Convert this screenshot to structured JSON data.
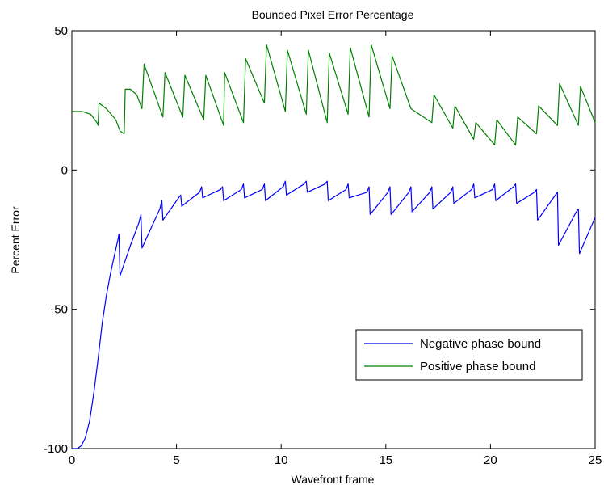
{
  "chart_data": {
    "type": "line",
    "title": "Bounded Pixel Error Percentage",
    "xlabel": "Wavefront frame",
    "ylabel": "Percent Error",
    "xlim": [
      0,
      25
    ],
    "ylim": [
      -100,
      50
    ],
    "xticks": [
      0,
      5,
      10,
      15,
      20,
      25
    ],
    "yticks": [
      -100,
      -50,
      0,
      50
    ],
    "xtick_labels": [
      "0",
      "5",
      "10",
      "15",
      "20",
      "25"
    ],
    "ytick_labels": [
      "-100",
      "-50",
      "0",
      "50"
    ],
    "grid": false,
    "legend_position": "lower-right",
    "series": [
      {
        "name": "Negative phase bound",
        "color": "#0000ff",
        "points": [
          [
            0,
            -100
          ],
          [
            0.25,
            -100
          ],
          [
            0.45,
            -99
          ],
          [
            0.65,
            -96
          ],
          [
            0.85,
            -90
          ],
          [
            1.05,
            -80
          ],
          [
            1.25,
            -68
          ],
          [
            1.45,
            -55
          ],
          [
            1.65,
            -45
          ],
          [
            1.85,
            -37
          ],
          [
            2.05,
            -30
          ],
          [
            2.2,
            -25
          ],
          [
            2.25,
            -23
          ],
          [
            2.3,
            -38
          ],
          [
            2.8,
            -27
          ],
          [
            3.2,
            -19
          ],
          [
            3.3,
            -16
          ],
          [
            3.35,
            -28
          ],
          [
            4.2,
            -14
          ],
          [
            4.3,
            -11
          ],
          [
            4.35,
            -18
          ],
          [
            5.1,
            -10
          ],
          [
            5.2,
            -9
          ],
          [
            5.25,
            -13
          ],
          [
            6.1,
            -8
          ],
          [
            6.2,
            -6
          ],
          [
            6.25,
            -10
          ],
          [
            7.1,
            -7
          ],
          [
            7.2,
            -6
          ],
          [
            7.25,
            -11
          ],
          [
            8.1,
            -7
          ],
          [
            8.2,
            -5
          ],
          [
            8.25,
            -10
          ],
          [
            9.1,
            -7
          ],
          [
            9.2,
            -5
          ],
          [
            9.25,
            -11
          ],
          [
            10.1,
            -6
          ],
          [
            10.2,
            -4
          ],
          [
            10.25,
            -9
          ],
          [
            11.1,
            -5
          ],
          [
            11.2,
            -4
          ],
          [
            11.25,
            -8
          ],
          [
            12.1,
            -5
          ],
          [
            12.2,
            -4
          ],
          [
            12.25,
            -11
          ],
          [
            13.1,
            -7
          ],
          [
            13.2,
            -5
          ],
          [
            13.25,
            -10
          ],
          [
            14.1,
            -8
          ],
          [
            14.2,
            -6
          ],
          [
            14.25,
            -16
          ],
          [
            15.1,
            -8
          ],
          [
            15.2,
            -6
          ],
          [
            15.25,
            -16
          ],
          [
            16.1,
            -8
          ],
          [
            16.2,
            -6
          ],
          [
            16.25,
            -15
          ],
          [
            17.1,
            -8
          ],
          [
            17.2,
            -6
          ],
          [
            17.25,
            -14
          ],
          [
            18.1,
            -8
          ],
          [
            18.2,
            -6
          ],
          [
            18.25,
            -12
          ],
          [
            19.1,
            -7
          ],
          [
            19.2,
            -5
          ],
          [
            19.25,
            -10
          ],
          [
            20.1,
            -7
          ],
          [
            20.2,
            -5
          ],
          [
            20.25,
            -11
          ],
          [
            21.1,
            -6
          ],
          [
            21.2,
            -5
          ],
          [
            21.25,
            -12
          ],
          [
            22.1,
            -8
          ],
          [
            22.2,
            -7
          ],
          [
            22.25,
            -18
          ],
          [
            23.1,
            -9
          ],
          [
            23.2,
            -8
          ],
          [
            23.25,
            -27
          ],
          [
            24.1,
            -15
          ],
          [
            24.2,
            -14
          ],
          [
            24.25,
            -30
          ],
          [
            25,
            -17
          ]
        ]
      },
      {
        "name": "Positive phase bound",
        "color": "#008000",
        "points": [
          [
            0,
            21
          ],
          [
            0.5,
            21
          ],
          [
            0.9,
            20
          ],
          [
            1.2,
            17
          ],
          [
            1.25,
            16
          ],
          [
            1.3,
            24
          ],
          [
            1.65,
            22
          ],
          [
            2.1,
            18
          ],
          [
            2.3,
            14
          ],
          [
            2.5,
            13
          ],
          [
            2.55,
            29
          ],
          [
            2.8,
            29
          ],
          [
            3.1,
            27
          ],
          [
            3.35,
            22
          ],
          [
            3.45,
            38
          ],
          [
            4.35,
            19
          ],
          [
            4.45,
            35
          ],
          [
            5.3,
            19
          ],
          [
            5.4,
            34
          ],
          [
            6.3,
            18
          ],
          [
            6.4,
            34
          ],
          [
            7.25,
            16
          ],
          [
            7.3,
            35
          ],
          [
            8.2,
            17
          ],
          [
            8.3,
            40
          ],
          [
            9.2,
            24
          ],
          [
            9.3,
            45
          ],
          [
            10.2,
            21
          ],
          [
            10.3,
            43
          ],
          [
            11.2,
            20
          ],
          [
            11.3,
            43
          ],
          [
            12.2,
            17
          ],
          [
            12.3,
            42
          ],
          [
            13.2,
            20
          ],
          [
            13.3,
            44
          ],
          [
            14.2,
            19
          ],
          [
            14.3,
            45
          ],
          [
            15.2,
            22
          ],
          [
            15.3,
            41
          ],
          [
            16.2,
            22
          ],
          [
            17.2,
            17
          ],
          [
            17.3,
            27
          ],
          [
            18.2,
            15
          ],
          [
            18.3,
            23
          ],
          [
            19.2,
            11
          ],
          [
            19.3,
            17
          ],
          [
            20.2,
            9
          ],
          [
            20.3,
            18
          ],
          [
            21.2,
            9
          ],
          [
            21.3,
            19
          ],
          [
            22.2,
            13
          ],
          [
            22.3,
            23
          ],
          [
            23.2,
            16
          ],
          [
            23.3,
            31
          ],
          [
            24.2,
            16
          ],
          [
            24.3,
            30
          ],
          [
            25,
            17
          ]
        ]
      }
    ]
  }
}
